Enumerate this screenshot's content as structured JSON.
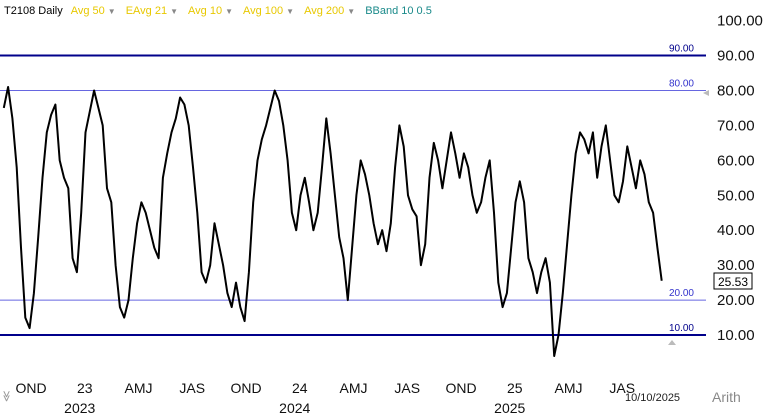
{
  "legend": {
    "symbol": "T2108",
    "period": "Daily",
    "indicators": [
      {
        "label": "Avg 50",
        "color": "#e8c800"
      },
      {
        "label": "EAvg 21",
        "color": "#e8c800"
      },
      {
        "label": "Avg 10",
        "color": "#e8c800"
      },
      {
        "label": "Avg 100",
        "color": "#e8c800"
      },
      {
        "label": "Avg 200",
        "color": "#e8c800"
      },
      {
        "label": "BBand 10 0.5",
        "color": "#1a8a8a"
      }
    ]
  },
  "footer": {
    "date": "10/10/2025",
    "scale": "Arith"
  },
  "chart_data": {
    "type": "line",
    "ylim": [
      0,
      100
    ],
    "yticks": [
      "10.00",
      "20.00",
      "30.00",
      "40.00",
      "50.00",
      "60.00",
      "70.00",
      "80.00",
      "90.00",
      "100.00"
    ],
    "last_value_label": "25.53",
    "reference_lines": [
      {
        "value": 90,
        "label": "90.00",
        "color": "#00008b",
        "width": 2
      },
      {
        "value": 80,
        "label": "80.00",
        "color": "#6666e0",
        "width": 1
      },
      {
        "value": 20,
        "label": "20.00",
        "color": "#6666e0",
        "width": 1
      },
      {
        "value": 10,
        "label": "10.00",
        "color": "#00008b",
        "width": 2
      }
    ],
    "x_tick_labels": [
      {
        "t": 0.0,
        "label": "OND"
      },
      {
        "t": 0.25,
        "label": "23"
      },
      {
        "t": 0.5,
        "label": "AMJ"
      },
      {
        "t": 0.75,
        "label": "JAS"
      },
      {
        "t": 1.0,
        "label": "OND"
      },
      {
        "t": 1.25,
        "label": "24"
      },
      {
        "t": 1.5,
        "label": "AMJ"
      },
      {
        "t": 1.75,
        "label": "JAS"
      },
      {
        "t": 2.0,
        "label": "OND"
      },
      {
        "t": 2.25,
        "label": "25"
      },
      {
        "t": 2.5,
        "label": "AMJ"
      },
      {
        "t": 2.75,
        "label": "JAS"
      }
    ],
    "year_labels": [
      {
        "t": 0.25,
        "label": "2023"
      },
      {
        "t": 1.25,
        "label": "2024"
      },
      {
        "t": 2.25,
        "label": "2025"
      }
    ],
    "series": [
      {
        "color": "#000000",
        "points": [
          [
            -0.08,
            75
          ],
          [
            -0.06,
            81
          ],
          [
            -0.04,
            72
          ],
          [
            -0.02,
            58
          ],
          [
            0.0,
            35
          ],
          [
            0.02,
            15
          ],
          [
            0.04,
            12
          ],
          [
            0.06,
            22
          ],
          [
            0.08,
            38
          ],
          [
            0.1,
            55
          ],
          [
            0.12,
            68
          ],
          [
            0.14,
            73
          ],
          [
            0.16,
            76
          ],
          [
            0.18,
            60
          ],
          [
            0.2,
            55
          ],
          [
            0.22,
            52
          ],
          [
            0.24,
            32
          ],
          [
            0.26,
            28
          ],
          [
            0.28,
            45
          ],
          [
            0.3,
            68
          ],
          [
            0.32,
            74
          ],
          [
            0.34,
            80
          ],
          [
            0.36,
            75
          ],
          [
            0.38,
            70
          ],
          [
            0.4,
            52
          ],
          [
            0.42,
            48
          ],
          [
            0.44,
            30
          ],
          [
            0.46,
            18
          ],
          [
            0.48,
            15
          ],
          [
            0.5,
            20
          ],
          [
            0.52,
            32
          ],
          [
            0.54,
            42
          ],
          [
            0.56,
            48
          ],
          [
            0.58,
            45
          ],
          [
            0.6,
            40
          ],
          [
            0.62,
            35
          ],
          [
            0.64,
            32
          ],
          [
            0.66,
            55
          ],
          [
            0.68,
            62
          ],
          [
            0.7,
            68
          ],
          [
            0.72,
            72
          ],
          [
            0.74,
            78
          ],
          [
            0.76,
            76
          ],
          [
            0.78,
            70
          ],
          [
            0.8,
            58
          ],
          [
            0.82,
            45
          ],
          [
            0.84,
            28
          ],
          [
            0.86,
            25
          ],
          [
            0.88,
            30
          ],
          [
            0.9,
            42
          ],
          [
            0.92,
            36
          ],
          [
            0.94,
            30
          ],
          [
            0.96,
            22
          ],
          [
            0.98,
            18
          ],
          [
            1.0,
            25
          ],
          [
            1.02,
            18
          ],
          [
            1.04,
            14
          ],
          [
            1.06,
            28
          ],
          [
            1.08,
            48
          ],
          [
            1.1,
            60
          ],
          [
            1.12,
            66
          ],
          [
            1.14,
            70
          ],
          [
            1.16,
            75
          ],
          [
            1.18,
            80
          ],
          [
            1.2,
            77
          ],
          [
            1.22,
            70
          ],
          [
            1.24,
            60
          ],
          [
            1.26,
            45
          ],
          [
            1.28,
            40
          ],
          [
            1.3,
            50
          ],
          [
            1.32,
            55
          ],
          [
            1.34,
            48
          ],
          [
            1.36,
            40
          ],
          [
            1.38,
            45
          ],
          [
            1.4,
            58
          ],
          [
            1.42,
            72
          ],
          [
            1.44,
            62
          ],
          [
            1.46,
            50
          ],
          [
            1.48,
            38
          ],
          [
            1.5,
            32
          ],
          [
            1.52,
            20
          ],
          [
            1.54,
            35
          ],
          [
            1.56,
            50
          ],
          [
            1.58,
            60
          ],
          [
            1.6,
            56
          ],
          [
            1.62,
            50
          ],
          [
            1.64,
            42
          ],
          [
            1.66,
            36
          ],
          [
            1.68,
            40
          ],
          [
            1.7,
            34
          ],
          [
            1.72,
            42
          ],
          [
            1.74,
            58
          ],
          [
            1.76,
            70
          ],
          [
            1.78,
            64
          ],
          [
            1.8,
            50
          ],
          [
            1.82,
            46
          ],
          [
            1.84,
            44
          ],
          [
            1.86,
            30
          ],
          [
            1.88,
            36
          ],
          [
            1.9,
            55
          ],
          [
            1.92,
            65
          ],
          [
            1.94,
            60
          ],
          [
            1.96,
            52
          ],
          [
            1.98,
            60
          ],
          [
            2.0,
            68
          ],
          [
            2.02,
            62
          ],
          [
            2.04,
            55
          ],
          [
            2.06,
            62
          ],
          [
            2.08,
            58
          ],
          [
            2.1,
            50
          ],
          [
            2.12,
            45
          ],
          [
            2.14,
            48
          ],
          [
            2.16,
            55
          ],
          [
            2.18,
            60
          ],
          [
            2.2,
            45
          ],
          [
            2.22,
            25
          ],
          [
            2.24,
            18
          ],
          [
            2.26,
            22
          ],
          [
            2.28,
            35
          ],
          [
            2.3,
            48
          ],
          [
            2.32,
            54
          ],
          [
            2.34,
            48
          ],
          [
            2.36,
            32
          ],
          [
            2.38,
            28
          ],
          [
            2.4,
            22
          ],
          [
            2.42,
            28
          ],
          [
            2.44,
            32
          ],
          [
            2.46,
            25
          ],
          [
            2.48,
            4
          ],
          [
            2.5,
            10
          ],
          [
            2.52,
            22
          ],
          [
            2.54,
            36
          ],
          [
            2.56,
            50
          ],
          [
            2.58,
            62
          ],
          [
            2.6,
            68
          ],
          [
            2.62,
            66
          ],
          [
            2.64,
            62
          ],
          [
            2.66,
            68
          ],
          [
            2.68,
            55
          ],
          [
            2.7,
            64
          ],
          [
            2.72,
            70
          ],
          [
            2.74,
            60
          ],
          [
            2.76,
            50
          ],
          [
            2.78,
            48
          ],
          [
            2.8,
            54
          ],
          [
            2.82,
            64
          ],
          [
            2.84,
            58
          ],
          [
            2.86,
            52
          ],
          [
            2.88,
            60
          ],
          [
            2.9,
            56
          ],
          [
            2.92,
            48
          ],
          [
            2.94,
            45
          ],
          [
            2.96,
            35
          ],
          [
            2.98,
            25.53
          ]
        ]
      }
    ]
  }
}
